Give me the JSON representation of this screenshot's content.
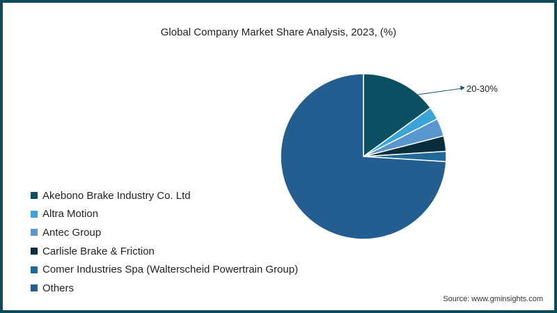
{
  "chart_data": {
    "type": "pie",
    "title": "Global Company Market Share Analysis, 2023, (%)",
    "categories": [
      "Akebono Brake Industry Co. Ltd",
      "Altra Motion",
      "Antec Group",
      "Carlisle Brake & Friction",
      "Comer Industries Spa (Walterscheid Powertrain Group)",
      "Others"
    ],
    "values": [
      15,
      2.5,
      3.5,
      3,
      2,
      74
    ],
    "colors": [
      "#0b4f63",
      "#3aa3d8",
      "#5a97cf",
      "#0a2e3d",
      "#1f6a99",
      "#245e91"
    ],
    "annotations": [
      {
        "text": "20-30%",
        "target": "top 5 companies combined"
      }
    ],
    "legend_position": "left"
  },
  "source": "Source: www.gminsights.com"
}
